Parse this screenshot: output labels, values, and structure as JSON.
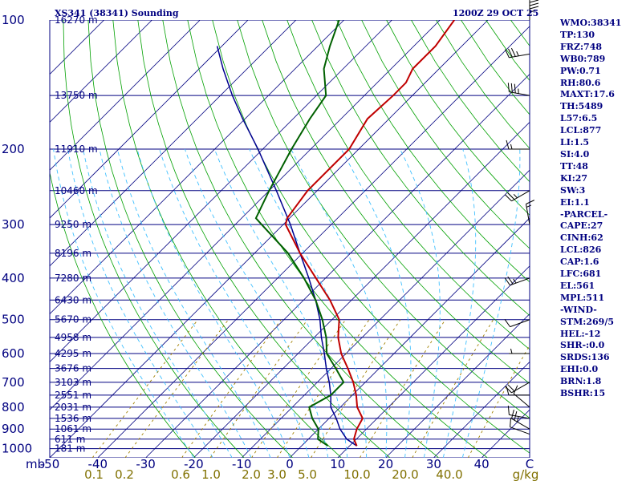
{
  "header": {
    "station_title": "XS341 (38341) Sounding",
    "valid_time": "1200Z 29 OCT 25"
  },
  "colors": {
    "isobar": "#000080",
    "isotherm": "#000080",
    "dry_adiabat": "#00a000",
    "moist_adiabat": "#40c0ff",
    "mixing_ratio": "#a08000",
    "temperature": "#c00000",
    "dewpoint": "#006000",
    "parcel": "#000090",
    "wind": "#000000"
  },
  "chart_data": {
    "type": "skew-t",
    "pressure_unit": "mb",
    "pressure_levels": [
      100,
      200,
      300,
      400,
      500,
      600,
      700,
      800,
      900,
      1000
    ],
    "temperature_ticks": [
      -50,
      -40,
      -30,
      -20,
      -10,
      0,
      10,
      20,
      30,
      40,
      "C"
    ],
    "mixing_ratio_ticks": [
      "0.1",
      "0.2",
      "0.6",
      "1.0",
      "2.0",
      "3.0",
      "5.0",
      "10.0",
      "20.0",
      "40.0",
      "g/kg"
    ],
    "height_labels": [
      {
        "p": 100,
        "label": "16270 m"
      },
      {
        "p": 150,
        "label": "13750 m"
      },
      {
        "p": 200,
        "label": "11910 m"
      },
      {
        "p": 250,
        "label": "10460 m"
      },
      {
        "p": 300,
        "label": "9250 m"
      },
      {
        "p": 350,
        "label": "8196 m"
      },
      {
        "p": 400,
        "label": "7280 m"
      },
      {
        "p": 450,
        "label": "6430 m"
      },
      {
        "p": 500,
        "label": "5670 m"
      },
      {
        "p": 550,
        "label": "4958 m"
      },
      {
        "p": 600,
        "label": "4295 m"
      },
      {
        "p": 650,
        "label": "3676 m"
      },
      {
        "p": 700,
        "label": "3103 m"
      },
      {
        "p": 750,
        "label": "2551 m"
      },
      {
        "p": 800,
        "label": "2031 m"
      },
      {
        "p": 850,
        "label": "1536 m"
      },
      {
        "p": 900,
        "label": "1061 m"
      },
      {
        "p": 950,
        "label": "611 m"
      },
      {
        "p": 1000,
        "label": "181 m"
      }
    ],
    "temperature_profile": [
      {
        "p": 985,
        "t": 11.5
      },
      {
        "p": 950,
        "t": 9.5
      },
      {
        "p": 900,
        "t": 8.0
      },
      {
        "p": 850,
        "t": 7.0
      },
      {
        "p": 800,
        "t": 3.5
      },
      {
        "p": 750,
        "t": 0.8
      },
      {
        "p": 700,
        "t": -2.5
      },
      {
        "p": 650,
        "t": -6.5
      },
      {
        "p": 600,
        "t": -11.0
      },
      {
        "p": 550,
        "t": -15.0
      },
      {
        "p": 500,
        "t": -18.5
      },
      {
        "p": 450,
        "t": -24.5
      },
      {
        "p": 400,
        "t": -32.0
      },
      {
        "p": 350,
        "t": -40.5
      },
      {
        "p": 300,
        "t": -49.5
      },
      {
        "p": 290,
        "t": -50.5
      },
      {
        "p": 250,
        "t": -52.0
      },
      {
        "p": 200,
        "t": -52.0
      },
      {
        "p": 170,
        "t": -54.5
      },
      {
        "p": 150,
        "t": -54.0
      },
      {
        "p": 140,
        "t": -54.0
      },
      {
        "p": 130,
        "t": -55.5
      },
      {
        "p": 115,
        "t": -55.5
      },
      {
        "p": 100,
        "t": -57.0
      }
    ],
    "dewpoint_profile": [
      {
        "p": 985,
        "t": 5.5
      },
      {
        "p": 950,
        "t": 2.0
      },
      {
        "p": 900,
        "t": 0.0
      },
      {
        "p": 850,
        "t": -3.5
      },
      {
        "p": 800,
        "t": -6.5
      },
      {
        "p": 750,
        "t": -4.5
      },
      {
        "p": 700,
        "t": -4.5
      },
      {
        "p": 650,
        "t": -9.0
      },
      {
        "p": 600,
        "t": -14.0
      },
      {
        "p": 550,
        "t": -17.5
      },
      {
        "p": 500,
        "t": -22.0
      },
      {
        "p": 450,
        "t": -27.5
      },
      {
        "p": 400,
        "t": -34.5
      },
      {
        "p": 350,
        "t": -43.0
      },
      {
        "p": 300,
        "t": -54.5
      },
      {
        "p": 290,
        "t": -57.0
      },
      {
        "p": 250,
        "t": -60.0
      },
      {
        "p": 200,
        "t": -64.0
      },
      {
        "p": 170,
        "t": -66.5
      },
      {
        "p": 150,
        "t": -68.0
      },
      {
        "p": 130,
        "t": -74.0
      },
      {
        "p": 115,
        "t": -77.5
      },
      {
        "p": 100,
        "t": -81.0
      }
    ],
    "parcel_profile": [
      {
        "p": 985,
        "t": 11.5
      },
      {
        "p": 950,
        "t": 8.0
      },
      {
        "p": 900,
        "t": 4.5
      },
      {
        "p": 850,
        "t": 1.5
      },
      {
        "p": 800,
        "t": -2.0
      },
      {
        "p": 750,
        "t": -4.5
      },
      {
        "p": 700,
        "t": -7.5
      },
      {
        "p": 650,
        "t": -11.0
      },
      {
        "p": 600,
        "t": -14.5
      },
      {
        "p": 550,
        "t": -18.5
      },
      {
        "p": 500,
        "t": -22.5
      },
      {
        "p": 450,
        "t": -27.5
      },
      {
        "p": 400,
        "t": -33.5
      },
      {
        "p": 350,
        "t": -40.5
      },
      {
        "p": 300,
        "t": -48.5
      },
      {
        "p": 250,
        "t": -58.5
      },
      {
        "p": 200,
        "t": -71.0
      },
      {
        "p": 170,
        "t": -80.5
      },
      {
        "p": 150,
        "t": -87.5
      },
      {
        "p": 130,
        "t": -95.0
      },
      {
        "p": 115,
        "t": -101.0
      }
    ],
    "wind_barbs": [
      {
        "p": 925,
        "dir": 290,
        "kt": 10
      },
      {
        "p": 900,
        "dir": 300,
        "kt": 25
      },
      {
        "p": 850,
        "dir": 280,
        "kt": 10
      },
      {
        "p": 800,
        "dir": 310,
        "kt": 10
      },
      {
        "p": 750,
        "dir": 270,
        "kt": 10
      },
      {
        "p": 700,
        "dir": 240,
        "kt": 20
      },
      {
        "p": 600,
        "dir": 270,
        "kt": 5
      },
      {
        "p": 500,
        "dir": 250,
        "kt": 10
      },
      {
        "p": 400,
        "dir": 250,
        "kt": 25
      },
      {
        "p": 300,
        "dir": 350,
        "kt": 15
      },
      {
        "p": 250,
        "dir": 240,
        "kt": 25
      },
      {
        "p": 200,
        "dir": 270,
        "kt": 15
      },
      {
        "p": 150,
        "dir": 280,
        "kt": 35
      },
      {
        "p": 120,
        "dir": 260,
        "kt": 35
      },
      {
        "p": 100,
        "dir": 360,
        "kt": 45
      }
    ],
    "indices": [
      "WMO:38341",
      "TP:130",
      "FRZ:748",
      "WB0:789",
      "PW:0.71",
      "RH:80.6",
      "MAXT:17.6",
      "TH:5489",
      "L57:6.5",
      "LCL:877",
      "LI:1.5",
      "SI:4.0",
      "TT:48",
      "KI:27",
      "SW:3",
      "EI:1.1",
      "-PARCEL-",
      "CAPE:27",
      "CINH:62",
      "LCL:826",
      "CAP:1.6",
      "LFC:681",
      "EL:561",
      "MPL:511",
      "-WIND-",
      "STM:269/5",
      "HEL:-12",
      "SHR-:0.0",
      "SRDS:136",
      "EHI:0.0",
      "BRN:1.8",
      "BSHR:15"
    ]
  }
}
